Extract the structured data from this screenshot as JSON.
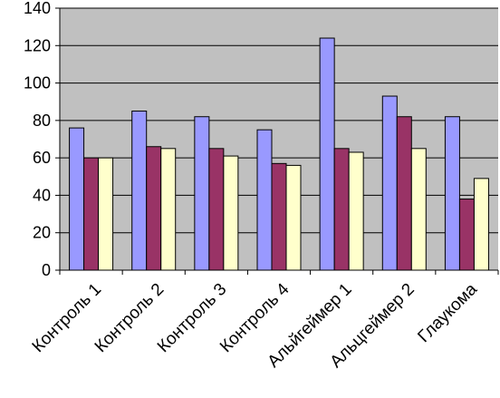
{
  "chart_data": {
    "type": "bar",
    "categories": [
      "Контроль 1",
      "Контроль 2",
      "Контроль 3",
      "Контроль 4",
      "Альйгеймер 1",
      "Альцгеймер 2",
      "Глаукома"
    ],
    "series": [
      {
        "color": "#9999ff",
        "values": [
          76,
          85,
          82,
          75,
          124,
          93,
          82
        ]
      },
      {
        "color": "#993366",
        "values": [
          60,
          66,
          65,
          57,
          65,
          82,
          38
        ]
      },
      {
        "color": "#ffffcc",
        "values": [
          60,
          65,
          61,
          56,
          63,
          65,
          49
        ]
      }
    ],
    "yticks": [
      "0",
      "20",
      "40",
      "60",
      "80",
      "100",
      "120",
      "140"
    ],
    "ylim": [
      0,
      140
    ],
    "grid": true,
    "legend": "none",
    "plot_background": "#c0c0c0",
    "gridline_color": "#000000"
  }
}
